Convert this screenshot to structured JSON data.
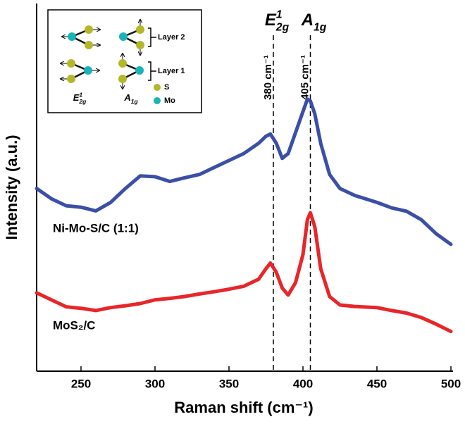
{
  "chart_data": {
    "type": "line",
    "xlabel": "Raman shift (cm⁻¹)",
    "ylabel": "Intensity (a.u.)",
    "x": [
      220,
      230,
      240,
      250,
      260,
      270,
      280,
      290,
      300,
      310,
      320,
      330,
      340,
      350,
      360,
      370,
      375,
      378,
      382,
      386,
      390,
      395,
      400,
      403,
      405,
      408,
      412,
      418,
      425,
      435,
      450,
      460,
      470,
      480,
      490,
      500
    ],
    "series": [
      {
        "name": "Ni-Mo-S/C (1:1)",
        "color": "#3b4fa6",
        "values": [
          49.7,
          46.9,
          45,
          44.6,
          43.6,
          45.9,
          49.7,
          53.1,
          52.9,
          51.6,
          52.6,
          53.5,
          55.4,
          57.3,
          59.2,
          62,
          63.9,
          64.5,
          62,
          57.9,
          59.2,
          64.9,
          70.6,
          74,
          73.5,
          70,
          62,
          53.5,
          49.7,
          47.8,
          45.9,
          44.4,
          43.5,
          41.2,
          37.4,
          34.5
        ]
      },
      {
        "name": "MoS₂/C",
        "color": "#e8262a",
        "values": [
          21.3,
          19.4,
          17.5,
          17.1,
          16.5,
          17.3,
          17.8,
          18.4,
          19.4,
          19.8,
          20.3,
          21,
          21.6,
          22.3,
          23.1,
          25,
          27.9,
          29.4,
          26.9,
          22.6,
          20.7,
          24.1,
          31.7,
          41.2,
          43.1,
          39.3,
          27.9,
          20.3,
          18,
          17.6,
          17.3,
          16.5,
          15.8,
          14.6,
          12.8,
          10.8
        ]
      }
    ],
    "xlim": [
      220,
      500
    ],
    "xticks": [
      250,
      300,
      350,
      400,
      450,
      500
    ],
    "ylim": [
      0,
      100
    ],
    "annotations": [
      {
        "x": 380,
        "label": "380 cm⁻¹",
        "peak": {
          "base": "E",
          "sup": "1",
          "sub": "2g"
        }
      },
      {
        "x": 405,
        "label": "405 cm⁻¹",
        "peak": {
          "base": "A",
          "sub": "1g"
        }
      }
    ],
    "inset": {
      "layers": [
        "Layer 2",
        "Layer 1"
      ],
      "atoms": [
        "S",
        "Mo"
      ],
      "modes": [
        {
          "base": "E",
          "sup": "1",
          "sub": "2g"
        },
        {
          "base": "A",
          "sub": "1g"
        }
      ]
    }
  }
}
